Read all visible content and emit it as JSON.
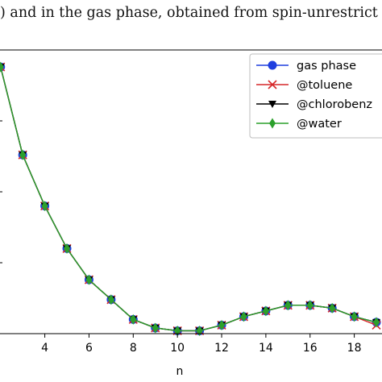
{
  "caption": ") and in the gas phase, obtained from spin-unrestrict",
  "chart_data": {
    "type": "line",
    "title": "",
    "xlabel": "n",
    "ylabel": "",
    "xlim": [
      1.9,
      19.4
    ],
    "ylim": [
      0.0,
      1.0
    ],
    "x_ticks": [
      4,
      6,
      8,
      10,
      12,
      14,
      16,
      18
    ],
    "grid": false,
    "legend_position": "top-right",
    "x": [
      2,
      3,
      4,
      5,
      6,
      7,
      8,
      9,
      10,
      11,
      12,
      13,
      14,
      15,
      16,
      17,
      18,
      19
    ],
    "series": [
      {
        "name": "gas phase",
        "color": "#1f3fdf",
        "marker": "circle",
        "values": [
          0.94,
          0.63,
          0.45,
          0.3,
          0.19,
          0.12,
          0.05,
          0.02,
          0.01,
          0.01,
          0.03,
          0.06,
          0.08,
          0.1,
          0.1,
          0.09,
          0.06,
          0.04
        ]
      },
      {
        "name": "@toluene",
        "color": "#d62728",
        "marker": "x",
        "values": [
          0.94,
          0.63,
          0.45,
          0.3,
          0.19,
          0.12,
          0.05,
          0.02,
          0.01,
          0.01,
          0.03,
          0.06,
          0.08,
          0.1,
          0.1,
          0.09,
          0.06,
          0.03
        ]
      },
      {
        "name": "@chlorobenz",
        "color": "#000000",
        "marker": "triangle-down",
        "values": [
          0.94,
          0.63,
          0.45,
          0.3,
          0.19,
          0.12,
          0.05,
          0.02,
          0.01,
          0.01,
          0.03,
          0.06,
          0.08,
          0.1,
          0.1,
          0.09,
          0.06,
          0.04
        ]
      },
      {
        "name": "@water",
        "color": "#2ca02c",
        "marker": "diamond",
        "values": [
          0.94,
          0.63,
          0.45,
          0.3,
          0.19,
          0.12,
          0.05,
          0.02,
          0.01,
          0.01,
          0.03,
          0.06,
          0.08,
          0.1,
          0.1,
          0.09,
          0.06,
          0.04
        ]
      }
    ]
  }
}
